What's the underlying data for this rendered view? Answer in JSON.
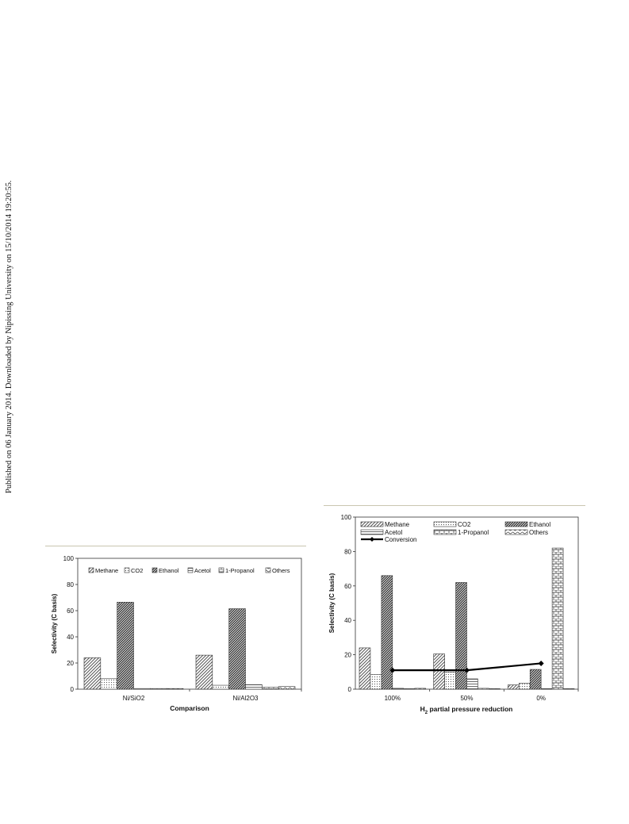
{
  "side_note": "Published on 06 January 2014. Downloaded by Nipissing University on 15/10/2014 19:20:55.",
  "chart_data": [
    {
      "type": "bar",
      "categories": [
        "Ni/SiO2",
        "Ni/Al2O3"
      ],
      "series": [
        {
          "name": "Methane",
          "values": [
            24,
            26
          ]
        },
        {
          "name": "CO2",
          "values": [
            8,
            3
          ]
        },
        {
          "name": "Ethanol",
          "values": [
            66.5,
            61.5
          ]
        },
        {
          "name": "Acetol",
          "values": [
            0.5,
            3.5
          ]
        },
        {
          "name": "1-Propanol",
          "values": [
            0.5,
            1.5
          ]
        },
        {
          "name": "Others",
          "values": [
            0.5,
            2
          ]
        }
      ],
      "xlabel": "Comparison",
      "ylabel": "Selectivity (C basis)",
      "ylim": [
        0,
        100
      ],
      "yticks": [
        0,
        20,
        40,
        60,
        80,
        100
      ],
      "legend": "top"
    },
    {
      "type": "bar",
      "categories": [
        "100%",
        "50%",
        "0%"
      ],
      "series": [
        {
          "name": "Methane",
          "values": [
            24,
            20.5,
            2.5
          ]
        },
        {
          "name": "CO2",
          "values": [
            8.5,
            10,
            3.5
          ]
        },
        {
          "name": "Ethanol",
          "values": [
            66,
            62,
            11.5
          ]
        },
        {
          "name": "Acetol",
          "values": [
            0.5,
            6,
            0.3
          ]
        },
        {
          "name": "1-Propanol",
          "values": [
            0.3,
            0.5,
            82
          ]
        },
        {
          "name": "Others",
          "values": [
            0.5,
            0.3,
            0.3
          ]
        }
      ],
      "line_series": {
        "name": "Conversion",
        "values": [
          11,
          11,
          15
        ]
      },
      "xlabel_main": "H",
      "xlabel_sub": "2",
      "xlabel_rest": " partial pressure reduction",
      "ylabel": "Selectivity (C basis)",
      "ylim": [
        0,
        100
      ],
      "yticks": [
        0,
        20,
        40,
        60,
        80,
        100
      ],
      "legend": "top"
    }
  ]
}
